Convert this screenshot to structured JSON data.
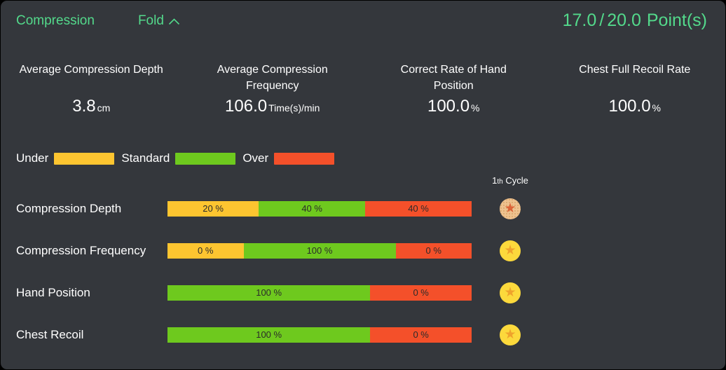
{
  "header": {
    "title": "Compression",
    "fold_label": "Fold",
    "score": {
      "value": "17.0",
      "separator": "/",
      "total": "20.0",
      "unit": "Point(s)"
    }
  },
  "stats": [
    {
      "label": "Average Compression Depth",
      "value": "3.8",
      "unit": "cm"
    },
    {
      "label": "Average Compression Frequency",
      "value": "106.0",
      "unit": "Time(s)/min"
    },
    {
      "label": "Correct Rate of Hand Position",
      "value": "100.0",
      "unit": "%"
    },
    {
      "label": "Chest Full Recoil Rate",
      "value": "100.0",
      "unit": "%"
    }
  ],
  "legend": [
    {
      "label": "Under",
      "color": "#fdc530"
    },
    {
      "label": "Standard",
      "color": "#6ec91e"
    },
    {
      "label": "Over",
      "color": "#f4502a"
    }
  ],
  "cycle": {
    "number": "1",
    "ordinal": "th",
    "word": "Cycle"
  },
  "chart_data": {
    "type": "bar",
    "stacked": true,
    "orientation": "horizontal",
    "unit": "%",
    "legend_position": "top-left",
    "categories": [
      "Compression Depth",
      "Compression Frequency",
      "Hand Position",
      "Chest Recoil"
    ],
    "rows": [
      {
        "label": "Compression Depth",
        "segments": [
          {
            "name": "Under",
            "value": 20
          },
          {
            "name": "Standard",
            "value": 40
          },
          {
            "name": "Over",
            "value": 40
          }
        ],
        "medal": "bronze"
      },
      {
        "label": "Compression Frequency",
        "segments": [
          {
            "name": "Under",
            "value": 0
          },
          {
            "name": "Standard",
            "value": 100
          },
          {
            "name": "Over",
            "value": 0
          }
        ],
        "medal": "gold"
      },
      {
        "label": "Hand Position",
        "segments": [
          {
            "name": "Standard",
            "value": 100
          },
          {
            "name": "Over",
            "value": 0
          }
        ],
        "medal": "gold"
      },
      {
        "label": "Chest Recoil",
        "segments": [
          {
            "name": "Standard",
            "value": 100
          },
          {
            "name": "Over",
            "value": 0
          }
        ],
        "medal": "gold"
      }
    ]
  },
  "colors": {
    "card_background": "#34373c",
    "accent_green_text": "#53d98b",
    "under": "#fdc530",
    "standard": "#6ec91e",
    "over": "#f4502a",
    "medal_gold": "#fcd93c",
    "medal_gold_star": "#efa32c",
    "medal_bronze": "#eec28f",
    "medal_bronze_star": "#dc6438"
  }
}
